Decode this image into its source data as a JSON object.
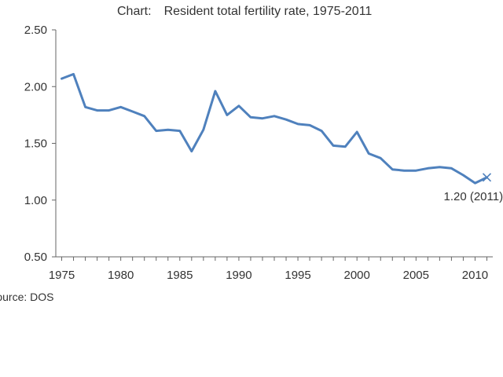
{
  "chart_data": {
    "type": "line",
    "title": "Chart: Resident total fertility rate, 1975-2011",
    "xlabel": "",
    "ylabel": "",
    "xlim": [
      1974.5,
      2011.5
    ],
    "ylim": [
      0.5,
      2.5
    ],
    "x_ticks": [
      "1975",
      "1980",
      "1985",
      "1990",
      "1995",
      "2000",
      "2005",
      "2010"
    ],
    "y_ticks": [
      "2.50",
      "2.00",
      "1.50",
      "1.00",
      "0.50"
    ],
    "grid": false,
    "legend": "none",
    "line_color": "#4f81bd",
    "series": [
      {
        "x": [
          1975,
          1976,
          1977,
          1978,
          1979,
          1980,
          1981,
          1982,
          1983,
          1984,
          1985,
          1986,
          1987,
          1988,
          1989,
          1990,
          1991,
          1992,
          1993,
          1994,
          1995,
          1996,
          1997,
          1998,
          1999,
          2000,
          2001,
          2002,
          2003,
          2004,
          2005,
          2006,
          2007,
          2008,
          2009,
          2010,
          2011
        ],
        "values": [
          2.07,
          2.11,
          1.82,
          1.79,
          1.79,
          1.82,
          1.78,
          1.74,
          1.61,
          1.62,
          1.61,
          1.43,
          1.62,
          1.96,
          1.75,
          1.83,
          1.73,
          1.72,
          1.74,
          1.71,
          1.67,
          1.66,
          1.61,
          1.48,
          1.47,
          1.6,
          1.41,
          1.37,
          1.27,
          1.26,
          1.26,
          1.28,
          1.29,
          1.28,
          1.22,
          1.15,
          1.2
        ]
      }
    ],
    "annotation": {
      "text": "1.20 (2011)",
      "x": 2011,
      "y": 1.2
    },
    "source": "Source: DOS"
  }
}
